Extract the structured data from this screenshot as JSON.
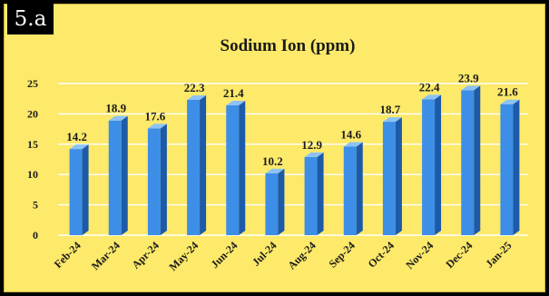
{
  "panel_label": "5.a",
  "colors": {
    "background": "#fde96a",
    "bar_front": "#3d8ee6",
    "bar_side": "#1d5aa8",
    "bar_top": "#8cc2f5",
    "gridline": "#ffffff"
  },
  "chart_data": {
    "type": "bar",
    "title": "Sodium Ion (ppm)",
    "xlabel": "",
    "ylabel": "",
    "categories": [
      "Feb-24",
      "Mar-24",
      "Apr-24",
      "May-24",
      "Jun-24",
      "Jul-24",
      "Aug-24",
      "Sep-24",
      "Oct-24",
      "Nov-24",
      "Dec-24",
      "Jan-25"
    ],
    "values": [
      14.2,
      18.9,
      17.6,
      22.3,
      21.4,
      10.2,
      12.9,
      14.6,
      18.7,
      22.4,
      23.9,
      21.6
    ],
    "ylim": [
      0,
      25
    ],
    "yticks": [
      0,
      5,
      10,
      15,
      20,
      25
    ],
    "grid": true,
    "legend": "none"
  }
}
